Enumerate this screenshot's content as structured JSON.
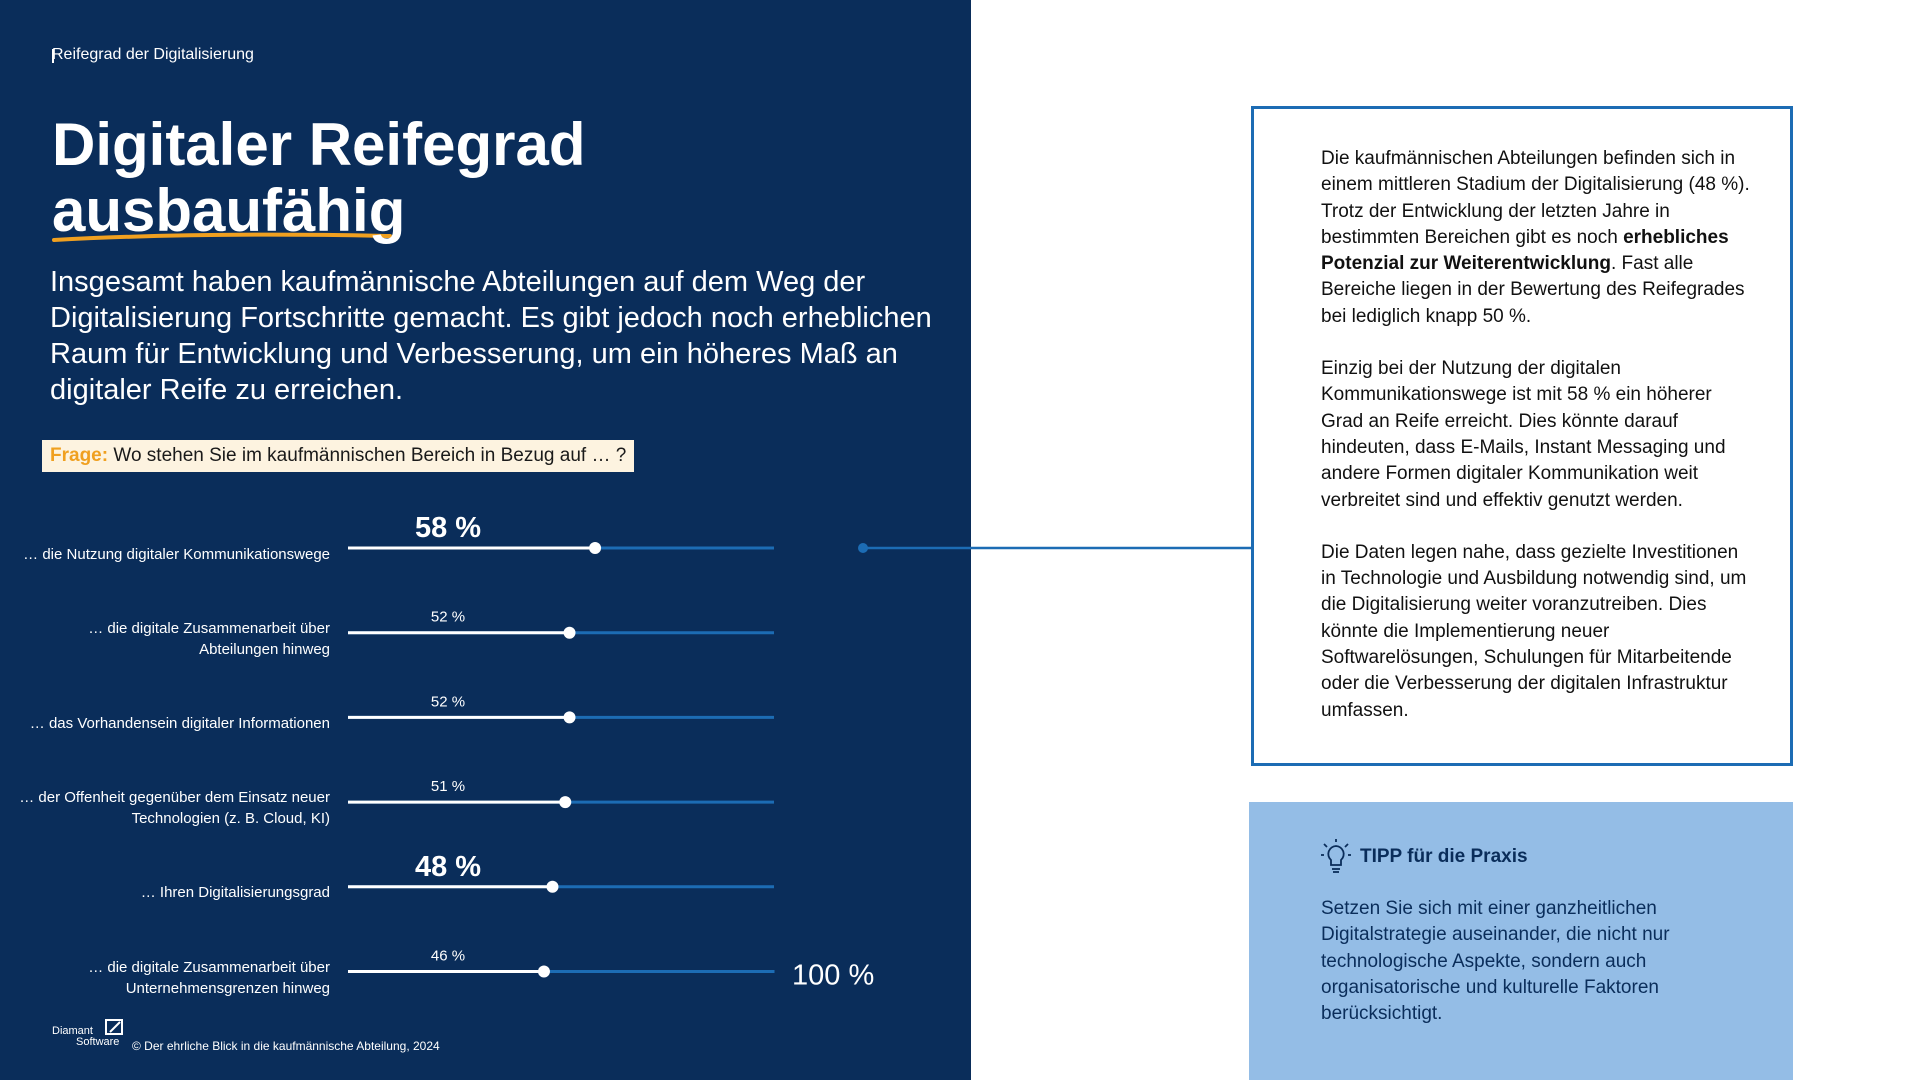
{
  "header": {
    "section": "Reifegrad der Digitalisierung",
    "title_line1": "Digitaler Reifegrad",
    "title_line2": "ausbaufähig",
    "lead": "Insgesamt haben kaufmännische Abteilungen auf dem Weg der Digitalisierung Fortschritte gemacht. Es gibt jedoch noch erheblichen Raum für Entwicklung und Verbesserung, um ein höheres Maß an digitaler Reife zu erreichen."
  },
  "question": {
    "label": "Frage:",
    "text": "Wo stehen Sie im kaufmännischen Bereich in Bezug auf … ?"
  },
  "chart_data": {
    "type": "bar",
    "orientation": "horizontal",
    "categories": [
      "… die Nutzung digitaler Kommunikationswege",
      "… die digitale Zusammenarbeit über Abteilungen hinweg",
      "… das Vorhandensein digitaler Informationen",
      "… der Offenheit gegenüber dem Einsatz neuer Technologien (z. B. Cloud, KI)",
      "… Ihren Digitalisierungsgrad",
      "… die digitale Zusammenarbeit über Unternehmensgrenzen hinweg"
    ],
    "values": [
      58,
      52,
      52,
      51,
      48,
      46
    ],
    "value_labels": [
      "58 %",
      "52 %",
      "52 %",
      "51 %",
      "48 %",
      "46 %"
    ],
    "emphasis": [
      true,
      false,
      false,
      false,
      true,
      false
    ],
    "xlim": [
      0,
      100
    ],
    "xticks": [
      {
        "value": 100,
        "label": "100 %"
      }
    ],
    "color": "#ffffff",
    "track_color": "#1c6cb4"
  },
  "body": {
    "paragraphs": [
      [
        "Die kaufmännischen Abteilungen befinden sich in einem mittleren Stadium der Digitalisierung (48 %). Trotz der Entwicklung der letzten Jahre in bestimmten Bereichen gibt es noch ",
        "erhebliches Potenzial zur Weiterentwicklung",
        ". Fast alle Bereiche liegen in der Bewertung des Reifegrades bei lediglich knapp 50 %."
      ],
      [
        "Einzig bei der Nutzung der digitalen Kommunikationswege ist mit 58 % ein höherer Grad an Reife erreicht. Dies könnte darauf hindeuten, dass E-Mails, Instant Messaging und andere Formen digitaler Kommunikation weit verbreitet sind und effektiv genutzt werden."
      ],
      [
        "Die Daten legen nahe, dass gezielte Investitionen in Technologie und Ausbildung notwendig sind, um die Digitalisierung weiter voranzutreiben. Dies könnte die Implementierung neuer Softwarelösungen, Schulungen für Mitarbeitende oder die Verbesserung der digitalen Infrastruktur umfassen."
      ]
    ]
  },
  "tip": {
    "title": "TIPP für die Praxis",
    "text": "Setzen Sie sich mit einer ganzheitlichen Digitalstrategie auseinander, die nicht nur technologische Aspekte, sondern auch organisatorische und kulturelle Faktoren berücksichtigt."
  },
  "footer": {
    "logo": [
      "Diamant",
      "Software"
    ],
    "copyright": "© Der ehrliche Blick in die kaufmännische Abteilung, 2024"
  }
}
